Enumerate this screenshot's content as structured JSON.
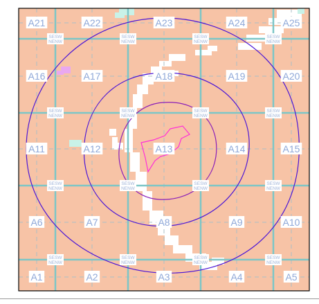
{
  "map": {
    "colors": {
      "land": "#f7c3a6",
      "frame": "#000000",
      "grid_major": "#7cc6c7",
      "grid_minor": "#a8bfc6",
      "label_text": "#8fa8d8",
      "label_box": "#ffffff",
      "contour_outer": "#4b16d6",
      "contour_inner": "#8a1fb8",
      "contour_core": "#ff2fd8",
      "clear_patch": "#ffffff",
      "mint_patch": "#c9f2e8",
      "lilac_patch": "#e9a8f0"
    },
    "cells": [
      {
        "id": "a21",
        "label": "A21"
      },
      {
        "id": "a22",
        "label": "A22"
      },
      {
        "id": "a23",
        "label": "A23"
      },
      {
        "id": "a24",
        "label": "A24"
      },
      {
        "id": "a25",
        "label": "A25"
      },
      {
        "id": "a16",
        "label": "A16"
      },
      {
        "id": "a17",
        "label": "A17"
      },
      {
        "id": "a18",
        "label": "A18"
      },
      {
        "id": "a19",
        "label": "A19"
      },
      {
        "id": "a20",
        "label": "A20"
      },
      {
        "id": "a11",
        "label": "A11"
      },
      {
        "id": "a12",
        "label": "A12"
      },
      {
        "id": "a13",
        "label": "A13"
      },
      {
        "id": "a14",
        "label": "A14"
      },
      {
        "id": "a15",
        "label": "A15"
      },
      {
        "id": "a6",
        "label": "A6"
      },
      {
        "id": "a7",
        "label": "A7"
      },
      {
        "id": "a8",
        "label": "A8"
      },
      {
        "id": "a9",
        "label": "A9"
      },
      {
        "id": "a10",
        "label": "A10"
      },
      {
        "id": "a1",
        "label": "A1"
      },
      {
        "id": "a2",
        "label": "A2"
      },
      {
        "id": "a3",
        "label": "A3"
      },
      {
        "id": "a4",
        "label": "A4"
      },
      {
        "id": "a5",
        "label": "A5"
      }
    ],
    "quadrant_marks": [
      {
        "top": "SESW",
        "bottom": "NENW"
      },
      {
        "top": "SESW",
        "bottom": "NENW"
      },
      {
        "top": "SESW",
        "bottom": "NENW"
      },
      {
        "top": "SESW",
        "bottom": "NENW"
      },
      {
        "top": "SESW",
        "bottom": "NENW"
      },
      {
        "top": "SESW",
        "bottom": "NENW"
      },
      {
        "top": "SESW",
        "bottom": "NENW"
      },
      {
        "top": "SESW",
        "bottom": "NENW"
      },
      {
        "top": "SESW",
        "bottom": "NENW"
      },
      {
        "top": "SESW",
        "bottom": "NENW"
      },
      {
        "top": "SESW",
        "bottom": "NENW"
      },
      {
        "top": "SESW",
        "bottom": "NENW"
      },
      {
        "top": "SESW",
        "bottom": "NENW"
      },
      {
        "top": "SESW",
        "bottom": "NENW"
      },
      {
        "top": "SESW",
        "bottom": "NENW"
      },
      {
        "top": "SESW",
        "bottom": "NENW"
      }
    ]
  }
}
